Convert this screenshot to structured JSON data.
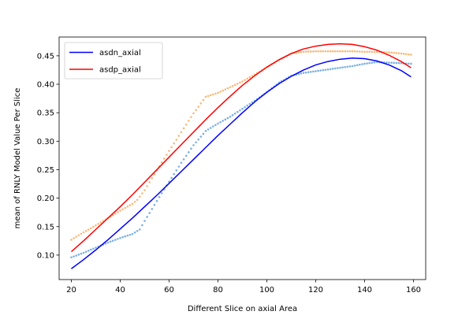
{
  "chart_data": {
    "type": "line",
    "title": "",
    "xlabel": "Different Slice on axial Area",
    "ylabel": "mean of RNLY Model Value Per Slice",
    "xlim": [
      15,
      165
    ],
    "ylim": [
      0.057,
      0.483
    ],
    "xticks": [
      20,
      40,
      60,
      80,
      100,
      120,
      140,
      160
    ],
    "yticks": [
      0.1,
      0.15,
      0.2,
      0.25,
      0.3,
      0.35,
      0.4,
      0.45
    ],
    "grid": false,
    "legend_position": "top-left",
    "legend": [
      {
        "label": "asdn_axial",
        "color": "#0000ff"
      },
      {
        "label": "asdp_axial",
        "color": "#ff0000"
      }
    ],
    "series": [
      {
        "name": "asdn_axial",
        "kind": "fit-line",
        "color": "#0000ff",
        "x": [
          20,
          25,
          30,
          35,
          40,
          45,
          50,
          55,
          60,
          65,
          70,
          75,
          80,
          85,
          90,
          95,
          100,
          105,
          110,
          115,
          120,
          125,
          130,
          135,
          140,
          145,
          150,
          155,
          159
        ],
        "y": [
          0.076,
          0.092,
          0.109,
          0.127,
          0.146,
          0.165,
          0.185,
          0.205,
          0.226,
          0.247,
          0.268,
          0.289,
          0.31,
          0.33,
          0.35,
          0.369,
          0.386,
          0.401,
          0.414,
          0.425,
          0.434,
          0.44,
          0.444,
          0.446,
          0.445,
          0.441,
          0.434,
          0.424,
          0.413
        ]
      },
      {
        "name": "asdp_axial",
        "kind": "fit-line",
        "color": "#ff0000",
        "x": [
          20,
          25,
          30,
          35,
          40,
          45,
          50,
          55,
          60,
          65,
          70,
          75,
          80,
          85,
          90,
          95,
          100,
          105,
          110,
          115,
          120,
          125,
          130,
          135,
          140,
          145,
          150,
          155,
          159
        ],
        "y": [
          0.106,
          0.125,
          0.145,
          0.165,
          0.185,
          0.206,
          0.228,
          0.25,
          0.272,
          0.294,
          0.316,
          0.338,
          0.359,
          0.379,
          0.398,
          0.415,
          0.43,
          0.443,
          0.454,
          0.462,
          0.467,
          0.47,
          0.471,
          0.47,
          0.466,
          0.46,
          0.451,
          0.44,
          0.429
        ]
      },
      {
        "kind": "points",
        "color": "#6fa8dc",
        "x": [
          20,
          25,
          30,
          35,
          40,
          45,
          48,
          50,
          55,
          60,
          65,
          70,
          75,
          78,
          80,
          85,
          90,
          95,
          100,
          105,
          110,
          115,
          120,
          125,
          130,
          135,
          140,
          145,
          150,
          155,
          159
        ],
        "y": [
          0.096,
          0.104,
          0.113,
          0.122,
          0.13,
          0.137,
          0.145,
          0.16,
          0.195,
          0.229,
          0.262,
          0.293,
          0.318,
          0.326,
          0.331,
          0.343,
          0.357,
          0.371,
          0.386,
          0.403,
          0.415,
          0.42,
          0.423,
          0.426,
          0.429,
          0.432,
          0.436,
          0.439,
          0.438,
          0.437,
          0.436
        ]
      },
      {
        "kind": "points",
        "color": "#f6b26b",
        "x": [
          20,
          25,
          30,
          35,
          40,
          45,
          47,
          50,
          55,
          60,
          65,
          70,
          75,
          80,
          85,
          90,
          95,
          100,
          105,
          110,
          115,
          120,
          125,
          130,
          135,
          140,
          145,
          150,
          155,
          159
        ],
        "y": [
          0.127,
          0.14,
          0.152,
          0.165,
          0.178,
          0.19,
          0.197,
          0.214,
          0.249,
          0.283,
          0.316,
          0.349,
          0.378,
          0.385,
          0.395,
          0.405,
          0.417,
          0.43,
          0.443,
          0.454,
          0.457,
          0.458,
          0.458,
          0.458,
          0.458,
          0.457,
          0.457,
          0.456,
          0.454,
          0.452
        ]
      }
    ]
  }
}
